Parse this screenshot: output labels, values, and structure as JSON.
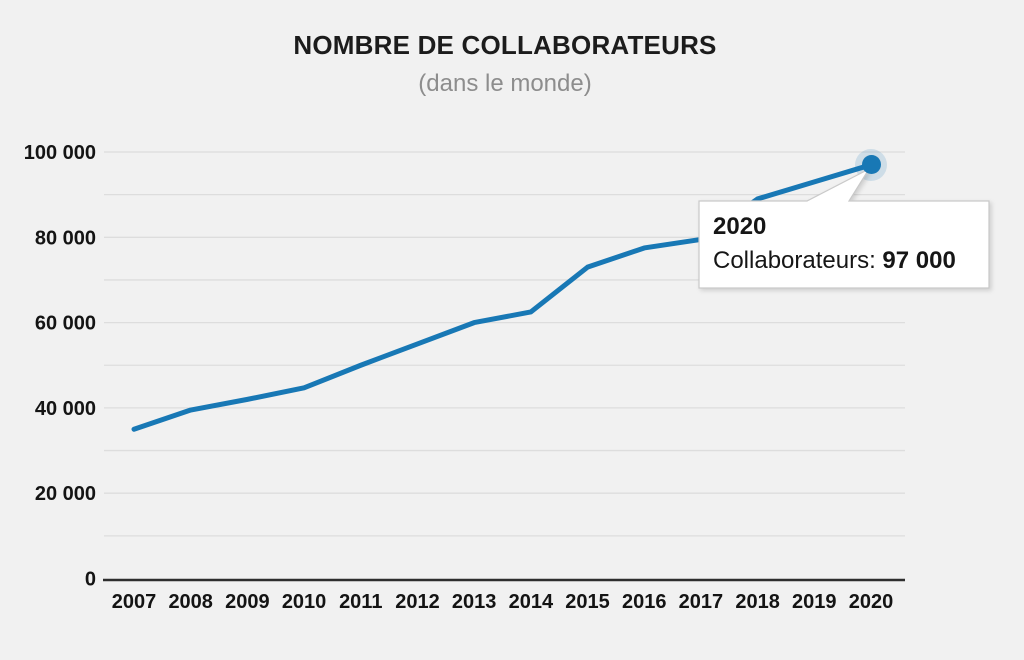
{
  "header": {
    "title": "NOMBRE DE COLLABORATEURS",
    "subtitle": "(dans le monde)"
  },
  "chart_data": {
    "type": "line",
    "categories": [
      "2007",
      "2008",
      "2009",
      "2010",
      "2011",
      "2012",
      "2013",
      "2014",
      "2015",
      "2016",
      "2017",
      "2018",
      "2019",
      "2020"
    ],
    "series": [
      {
        "name": "Collaborateurs",
        "values": [
          35000,
          39500,
          42000,
          44700,
          50000,
          55000,
          60000,
          62500,
          73000,
          77500,
          79500,
          89000,
          93000,
          97000
        ],
        "color": "#1878b5"
      }
    ],
    "title": "NOMBRE DE COLLABORATEURS",
    "subtitle": "(dans le monde)",
    "xlabel": "",
    "ylabel": "",
    "ylim": [
      0,
      100000
    ],
    "ytick_step": 20000,
    "grid_step": 10000,
    "grid": true,
    "legend": false,
    "highlighted_point": {
      "category": "2020",
      "value": 97000
    }
  },
  "tooltip": {
    "year": "2020",
    "series_label": "Collaborateurs:",
    "value": "97 000"
  },
  "colors": {
    "line": "#1878b5",
    "background": "#f1f1f1",
    "grid": "#dddddd",
    "axis": "#2e2e2e",
    "tick_text": "#141414",
    "tooltip_border": "#c9c9c9",
    "tooltip_bg": "#ffffff"
  }
}
